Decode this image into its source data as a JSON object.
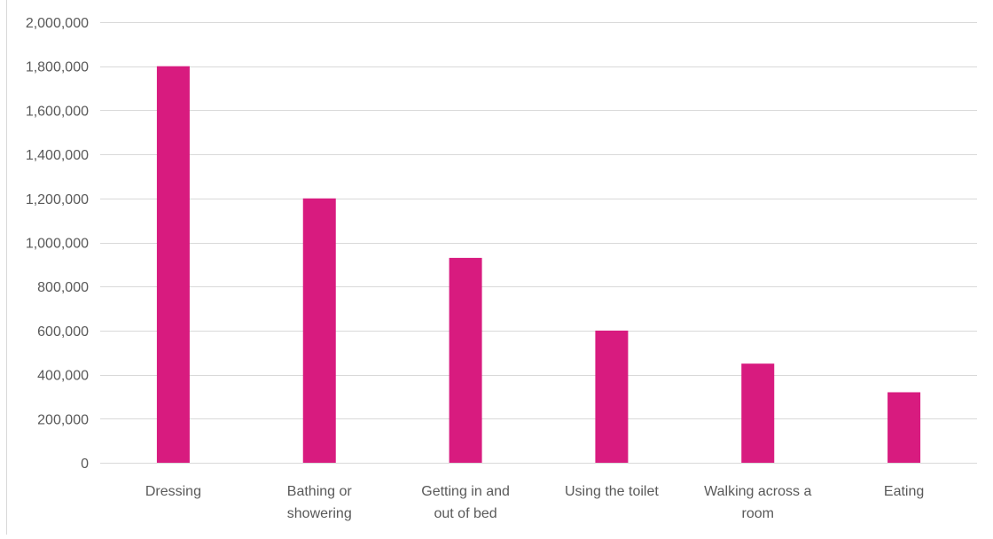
{
  "chart_data": {
    "type": "bar",
    "title": "",
    "xlabel": "",
    "ylabel": "",
    "categories": [
      [
        "Dressing"
      ],
      [
        "Bathing or",
        "showering"
      ],
      [
        "Getting in and",
        "out of bed"
      ],
      [
        "Using the toilet"
      ],
      [
        "Walking across a",
        "room"
      ],
      [
        "Eating"
      ]
    ],
    "values": [
      1800000,
      1200000,
      930000,
      600000,
      450000,
      320000
    ],
    "ylim": [
      0,
      2000000
    ],
    "yticks": [
      0,
      200000,
      400000,
      600000,
      800000,
      1000000,
      1200000,
      1400000,
      1600000,
      1800000,
      2000000
    ],
    "ytick_labels": [
      "0",
      "200,000",
      "400,000",
      "600,000",
      "800,000",
      "1,000,000",
      "1,200,000",
      "1,400,000",
      "1,600,000",
      "1,800,000",
      "2,000,000"
    ],
    "grid": true,
    "legend": "none",
    "colors": {
      "bar": "#d81b7f",
      "grid": "#d9d9d9",
      "text": "#595959"
    }
  }
}
